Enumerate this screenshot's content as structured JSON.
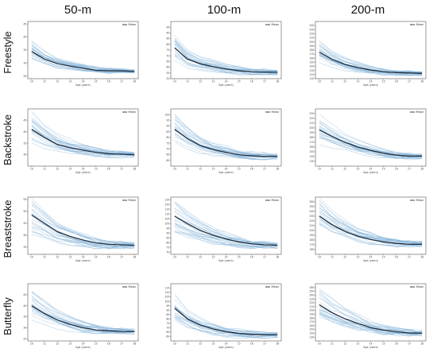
{
  "columns": [
    "50-m",
    "100-m",
    "200-m"
  ],
  "rows": [
    "Freestyle",
    "Backstroke",
    "Breaststroke",
    "Butterfly"
  ],
  "colors": {
    "individual": "#7fb0d6",
    "mean": "#1f2d3d",
    "frame": "#333333"
  },
  "chart_data": {
    "type": "line",
    "layout": "small-multiples-4x3",
    "xlabel": "Age (years)",
    "x": [
      10,
      11,
      12,
      13,
      14,
      15,
      16,
      17,
      18
    ],
    "xticks": [
      "10",
      "11",
      "12",
      "13",
      "14",
      "15",
      "16",
      "17",
      "18"
    ],
    "legend": {
      "entries": [
        "Mean"
      ],
      "placement": "top-right"
    },
    "individual_series_per_panel": 25,
    "panels": [
      {
        "event": "Freestyle",
        "distance": "50-m",
        "ylim": [
          24,
          46
        ],
        "yticks": [
          25,
          30,
          35,
          40,
          45
        ],
        "mean": [
          34.5,
          31.5,
          29.8,
          28.8,
          28.0,
          27.2,
          27.0,
          27.0,
          26.8
        ]
      },
      {
        "event": "Freestyle",
        "distance": "100-m",
        "ylim": [
          50,
          100
        ],
        "yticks": [
          50,
          55,
          60,
          65,
          70,
          75,
          80,
          85,
          90,
          95
        ],
        "mean": [
          77.0,
          67.0,
          63.0,
          60.5,
          58.5,
          57.0,
          56.0,
          55.8,
          55.5
        ]
      },
      {
        "event": "Freestyle",
        "distance": "200-m",
        "ylim": [
          110,
          250
        ],
        "yticks": [
          110,
          120,
          130,
          140,
          150,
          160,
          170,
          180,
          190,
          200,
          210,
          220,
          230,
          240
        ],
        "mean": [
          175,
          157,
          145,
          137,
          131,
          127,
          125,
          124,
          123
        ]
      },
      {
        "event": "Backstroke",
        "distance": "50-m",
        "ylim": [
          25,
          50
        ],
        "yticks": [
          30,
          35,
          40,
          45
        ],
        "mean": [
          41.0,
          37.5,
          34.5,
          33.0,
          32.0,
          31.0,
          30.4,
          30.2,
          30.0
        ]
      },
      {
        "event": "Backstroke",
        "distance": "100-m",
        "ylim": [
          55,
          105
        ],
        "yticks": [
          60,
          65,
          70,
          75,
          80,
          85,
          90,
          95,
          100
        ],
        "mean": [
          87.0,
          79.0,
          73.0,
          69.5,
          67.0,
          65.0,
          64.0,
          63.5,
          63.5
        ]
      },
      {
        "event": "Backstroke",
        "distance": "200-m",
        "ylim": [
          120,
          240
        ],
        "yticks": [
          130,
          140,
          150,
          160,
          170,
          180,
          190,
          200,
          210,
          220,
          230
        ],
        "mean": [
          196,
          182,
          170,
          160,
          153,
          147,
          143,
          141,
          141
        ]
      },
      {
        "event": "Breaststroke",
        "distance": "50-m",
        "ylim": [
          32,
          56
        ],
        "yticks": [
          35,
          40,
          45,
          50,
          55
        ],
        "mean": [
          48.5,
          45.0,
          41.5,
          39.5,
          38.0,
          36.8,
          36.2,
          36.0,
          35.8
        ]
      },
      {
        "event": "Breaststroke",
        "distance": "100-m",
        "ylim": [
          68,
          128
        ],
        "yticks": [
          70,
          75,
          80,
          85,
          90,
          95,
          100,
          105,
          110,
          115,
          120,
          125
        ],
        "mean": [
          108,
          100,
          93,
          88,
          84,
          81,
          79,
          78,
          77.5
        ]
      },
      {
        "event": "Breaststroke",
        "distance": "200-m",
        "ylim": [
          150,
          270
        ],
        "yticks": [
          160,
          170,
          180,
          190,
          200,
          210,
          220,
          230,
          240,
          250,
          260
        ],
        "mean": [
          230,
          212,
          198,
          188,
          181,
          176,
          173,
          171,
          171
        ]
      },
      {
        "event": "Butterfly",
        "distance": "50-m",
        "ylim": [
          24,
          50
        ],
        "yticks": [
          25,
          30,
          35,
          40,
          45
        ],
        "mean": [
          40.0,
          36.5,
          33.5,
          31.5,
          30.0,
          29.0,
          28.6,
          28.3,
          28.2
        ]
      },
      {
        "event": "Butterfly",
        "distance": "100-m",
        "ylim": [
          55,
          120
        ],
        "yticks": [
          60,
          65,
          70,
          75,
          80,
          85,
          90,
          95,
          100,
          105,
          110,
          115
        ],
        "mean": [
          92.0,
          80.0,
          73.0,
          68.5,
          65.5,
          63.5,
          62.5,
          62.0,
          62.0
        ]
      },
      {
        "event": "Butterfly",
        "distance": "200-m",
        "ylim": [
          120,
          270
        ],
        "yticks": [
          130,
          140,
          150,
          160,
          170,
          180,
          190,
          200,
          210,
          220,
          230,
          240,
          250,
          260
        ],
        "mean": [
          215,
          194,
          178,
          166,
          155,
          148,
          144,
          141,
          140
        ]
      }
    ]
  }
}
